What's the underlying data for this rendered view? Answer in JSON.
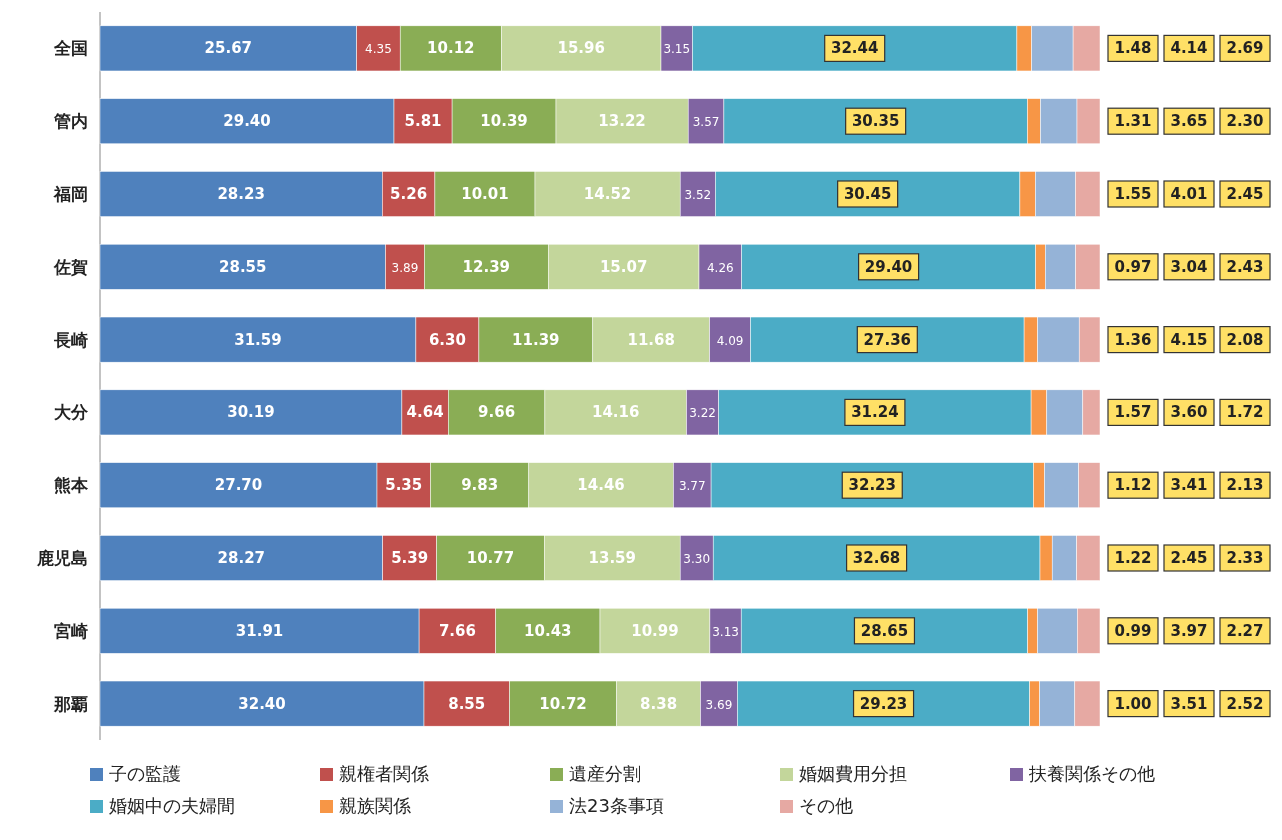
{
  "chart_data": {
    "type": "bar",
    "orientation": "horizontal",
    "stacked": true,
    "data_labels": true,
    "legend": "bottom",
    "grid": false,
    "categories": [
      "全国",
      "管内",
      "福岡",
      "佐賀",
      "長崎",
      "大分",
      "熊本",
      "鹿児島",
      "宮崎",
      "那覇"
    ],
    "series": [
      {
        "name": "子の監護",
        "color": "#4f81bd",
        "values": [
          25.67,
          29.4,
          28.23,
          28.55,
          31.59,
          30.19,
          27.7,
          28.27,
          31.91,
          32.4
        ],
        "value_labels": [
          "25.67",
          "29.40",
          "28.23",
          "28.55",
          "31.59",
          "30.19",
          "27.70",
          "28.27",
          "31.91",
          "32.40"
        ]
      },
      {
        "name": "親権者関係",
        "color": "#c0504d",
        "values": [
          4.35,
          5.81,
          5.26,
          3.89,
          6.3,
          4.64,
          5.35,
          5.39,
          7.66,
          8.55
        ],
        "value_labels": [
          "4.35",
          "5.81",
          "5.26",
          "3.89",
          "6.30",
          "4.64",
          "5.35",
          "5.39",
          "7.66",
          "8.55"
        ]
      },
      {
        "name": "遺産分割",
        "color": "#8aad55",
        "values": [
          10.12,
          10.39,
          10.01,
          12.39,
          11.39,
          9.66,
          9.83,
          10.77,
          10.43,
          10.72
        ],
        "value_labels": [
          "10.12",
          "10.39",
          "10.01",
          "12.39",
          "11.39",
          "9.66",
          "9.83",
          "10.77",
          "10.43",
          "10.72"
        ]
      },
      {
        "name": "婚姻費用分担",
        "color": "#c3d69b",
        "values": [
          15.96,
          13.22,
          14.52,
          15.07,
          11.68,
          14.16,
          14.46,
          13.59,
          10.99,
          8.38
        ],
        "value_labels": [
          "15.96",
          "13.22",
          "14.52",
          "15.07",
          "11.68",
          "14.16",
          "14.46",
          "13.59",
          "10.99",
          "8.38"
        ]
      },
      {
        "name": "扶養関係その他",
        "color": "#8064a2",
        "values": [
          3.15,
          3.57,
          3.52,
          4.26,
          4.09,
          3.22,
          3.77,
          3.3,
          3.13,
          3.69
        ],
        "value_labels": [
          "3.15",
          "3.57",
          "3.52",
          "4.26",
          "4.09",
          "3.22",
          "3.77",
          "3.30",
          "3.13",
          "3.69"
        ]
      },
      {
        "name": "婚姻中の夫婦間",
        "color": "#4bacc6",
        "values": [
          32.44,
          30.35,
          30.45,
          29.4,
          27.36,
          31.24,
          32.23,
          32.68,
          28.65,
          29.23
        ],
        "value_labels": [
          "32.44",
          "30.35",
          "30.45",
          "29.40",
          "27.36",
          "31.24",
          "32.23",
          "32.68",
          "28.65",
          "29.23"
        ]
      },
      {
        "name": "親族関係",
        "color": "#f79646",
        "values": [
          1.48,
          1.31,
          1.55,
          0.97,
          1.36,
          1.57,
          1.12,
          1.22,
          0.99,
          1.0
        ],
        "value_labels": [
          "1.48",
          "1.31",
          "1.55",
          "0.97",
          "1.36",
          "1.57",
          "1.12",
          "1.22",
          "0.99",
          "1.00"
        ]
      },
      {
        "name": "法23条事項",
        "color": "#95b3d7",
        "values": [
          4.14,
          3.65,
          4.01,
          3.04,
          4.15,
          3.6,
          3.41,
          2.45,
          3.97,
          3.51
        ],
        "value_labels": [
          "4.14",
          "3.65",
          "4.01",
          "3.04",
          "4.15",
          "3.60",
          "3.41",
          "2.45",
          "3.97",
          "3.51"
        ]
      },
      {
        "name": "その他",
        "color": "#e6a9a3",
        "values": [
          2.69,
          2.3,
          2.45,
          2.43,
          2.08,
          1.72,
          2.13,
          2.33,
          2.27,
          2.52
        ],
        "value_labels": [
          "2.69",
          "2.30",
          "2.45",
          "2.43",
          "2.08",
          "1.72",
          "2.13",
          "2.33",
          "2.27",
          "2.52"
        ]
      }
    ]
  }
}
